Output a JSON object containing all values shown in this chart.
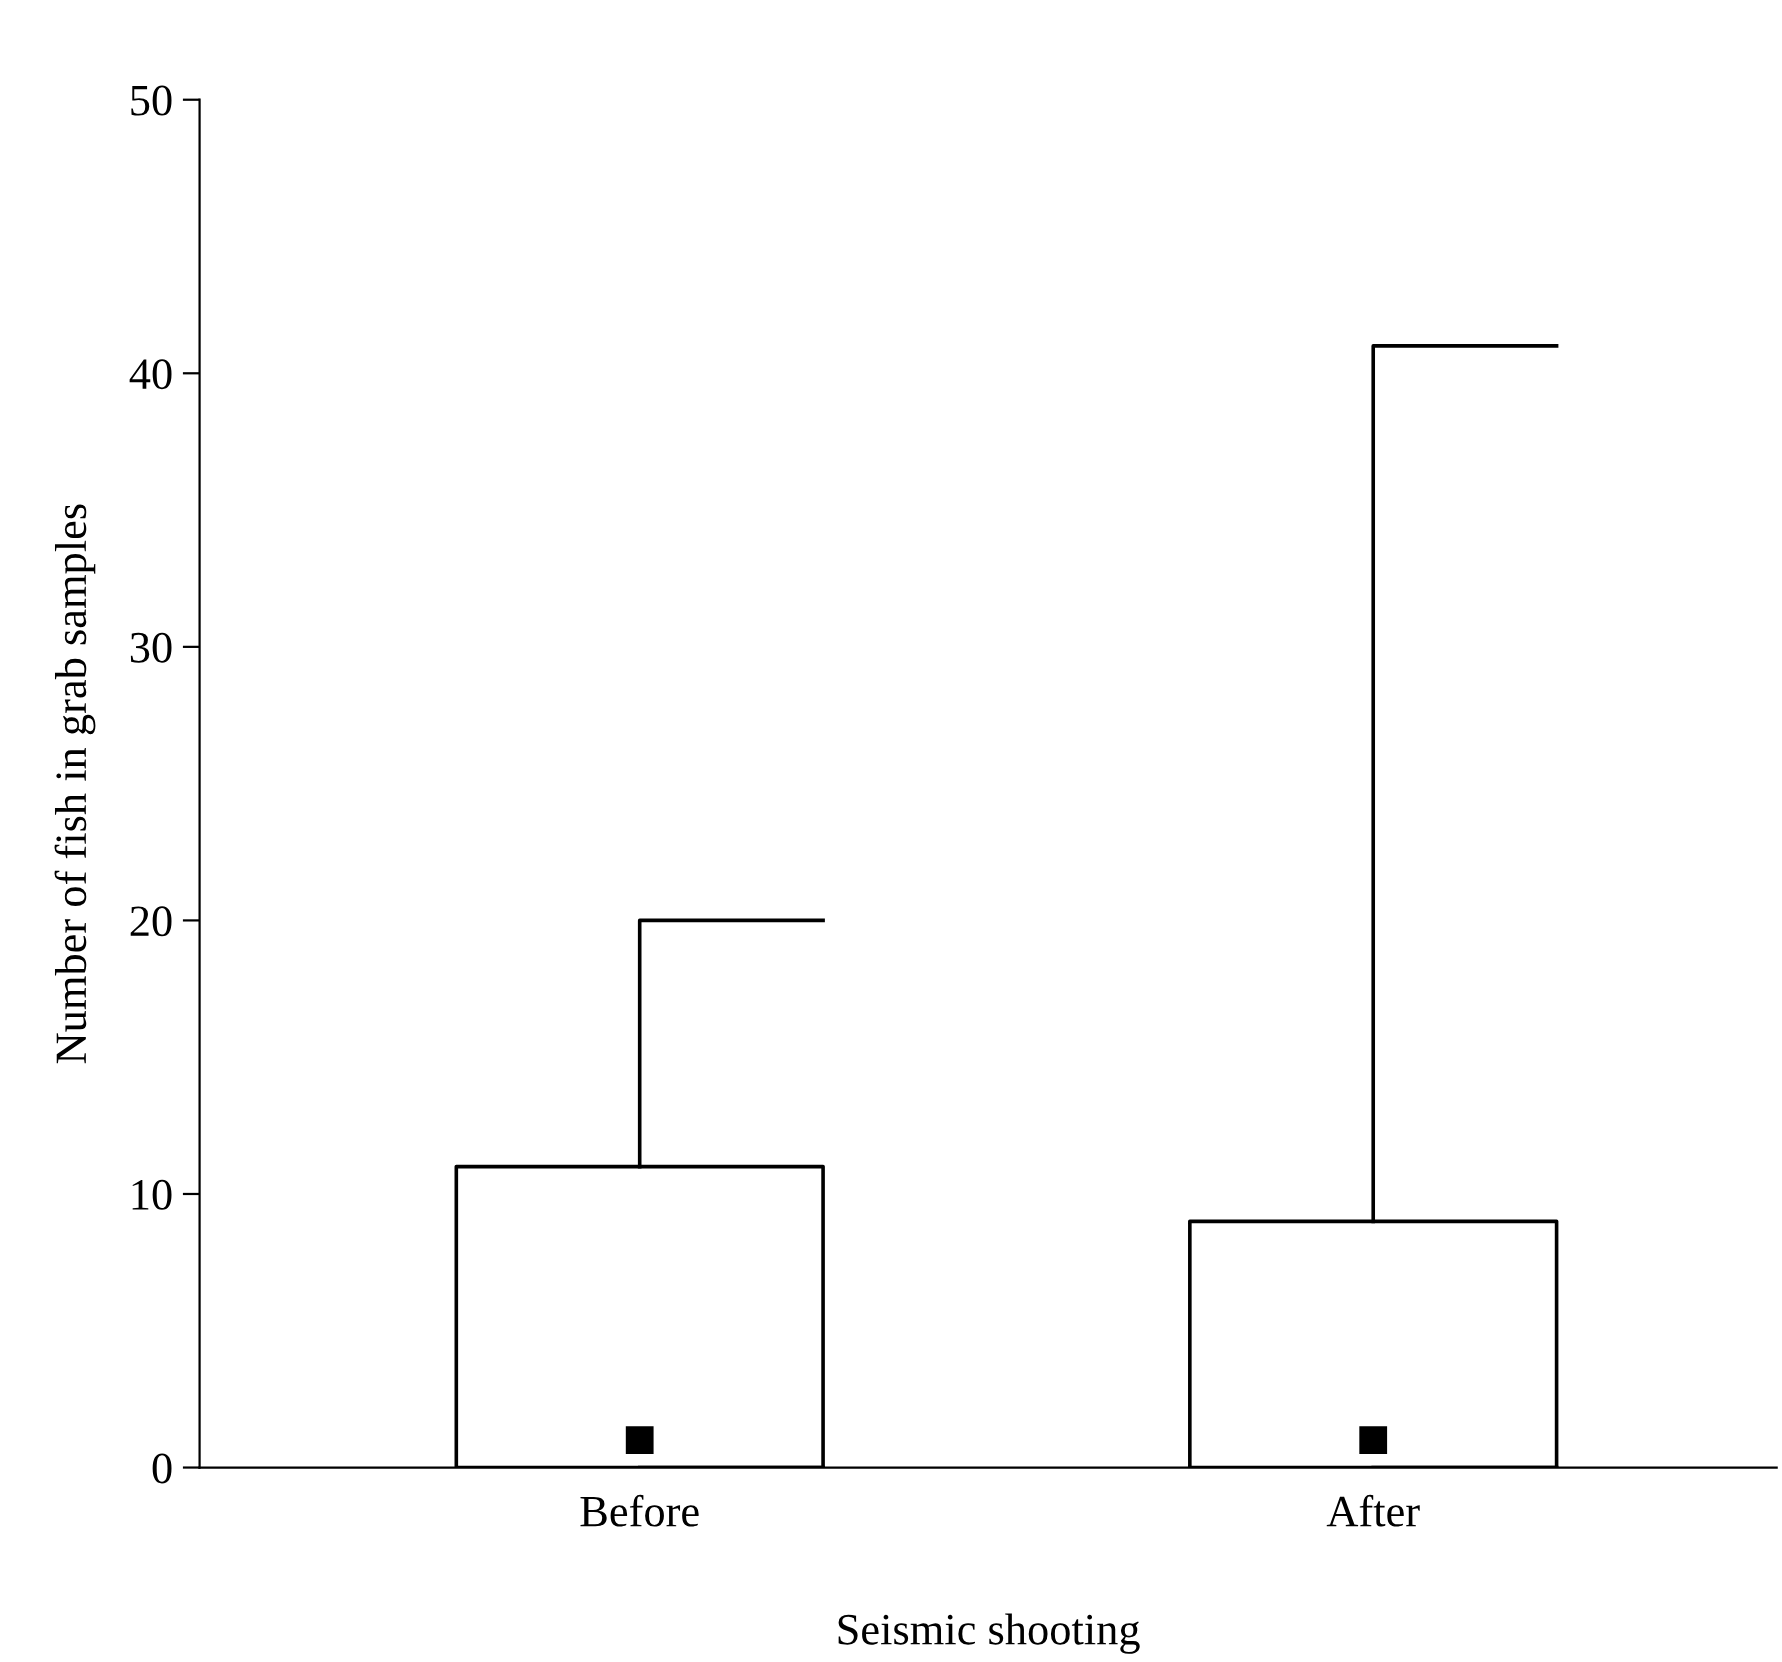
{
  "chart_data": {
    "type": "box",
    "xlabel": "Seismic shooting",
    "ylabel": "Number of fish in grab samples",
    "categories": [
      "Before",
      "After"
    ],
    "boxes": [
      {
        "low": 0,
        "q1": 0,
        "median": 1,
        "q3": 11,
        "high": 20
      },
      {
        "low": 0,
        "q1": 0,
        "median": 1,
        "q3": 9,
        "high": 41
      }
    ],
    "ylim": [
      0,
      50
    ],
    "yticks": [
      0,
      10,
      20,
      30,
      40,
      50
    ],
    "grid": false,
    "legend": false,
    "marker": "square"
  }
}
